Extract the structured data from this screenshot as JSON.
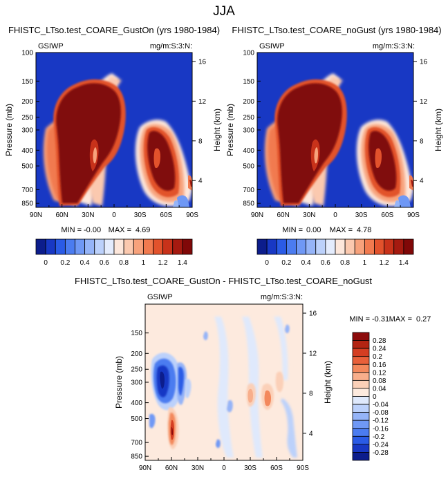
{
  "figure": {
    "title": "JJA"
  },
  "colors": {
    "upper_bar": [
      "#0c1d8c",
      "#1838c4",
      "#2a5be6",
      "#4b7cf0",
      "#6f98f5",
      "#95b4f8",
      "#bcd1fb",
      "#e4ecfd",
      "#fde7db",
      "#fbc9af",
      "#f7a27c",
      "#f17a4f",
      "#e2522c",
      "#c8321a",
      "#a51a10",
      "#800808"
    ],
    "diff_bar": [
      "#0c1d8c",
      "#1838c4",
      "#2a5be6",
      "#4b7cf0",
      "#6f98f5",
      "#95b4f8",
      "#bcd1fb",
      "#dfe9fc",
      "#fdeade",
      "#fbd0b8",
      "#f8ae8b",
      "#f3885c",
      "#e8603a",
      "#d43e22",
      "#b32412",
      "#8c0b0b"
    ]
  },
  "chart_data": [
    {
      "type": "heatmap",
      "title": "FHISTC_LTso.test_COARE_GustOn (yrs 1980-1984)",
      "left_label": "GSIWP",
      "right_label": "mg/m:S:3:N:",
      "xlabel": "",
      "ylabel": "Pressure (mb)",
      "ylabel_right": "Height (km)",
      "x_ticks": [
        "90N",
        "60N",
        "30N",
        "0",
        "30S",
        "60S",
        "90S"
      ],
      "y_ticks": [
        "100",
        "150",
        "200",
        "250",
        "300",
        "400",
        "500",
        "700",
        "850"
      ],
      "y2_ticks": [
        "16",
        "12",
        "8",
        "4"
      ],
      "stats": {
        "min_label": "MIN =",
        "min": "-0.00",
        "max_label": "MAX =",
        "max": "4.69"
      }
    },
    {
      "type": "heatmap",
      "title": "FHISTC_LTso.test_COARE_noGust (yrs 1980-1984)",
      "left_label": "GSIWP",
      "right_label": "mg/m:S:3:N:",
      "xlabel": "",
      "ylabel": "Pressure (mb)",
      "ylabel_right": "Height (km)",
      "x_ticks": [
        "90N",
        "60N",
        "30N",
        "0",
        "30S",
        "60S",
        "90S"
      ],
      "y_ticks": [
        "100",
        "150",
        "200",
        "250",
        "300",
        "400",
        "500",
        "700",
        "850"
      ],
      "y2_ticks": [
        "16",
        "12",
        "8",
        "4"
      ],
      "stats": {
        "min_label": "MIN =",
        "min": "0.00",
        "max_label": "MAX =",
        "max": "4.78"
      }
    },
    {
      "type": "heatmap",
      "title": "FHISTC_LTso.test_COARE_GustOn - FHISTC_LTso.test_COARE_noGust",
      "left_label": "GSIWP",
      "right_label": "mg/m:S:3:N:",
      "xlabel": "",
      "ylabel": "Pressure (mb)",
      "ylabel_right": "Height (km)",
      "x_ticks": [
        "90N",
        "60N",
        "30N",
        "0",
        "30S",
        "60S",
        "90S"
      ],
      "y_ticks": [
        "150",
        "200",
        "250",
        "300",
        "400",
        "500",
        "700",
        "850"
      ],
      "y2_ticks": [
        "16",
        "12",
        "8",
        "4"
      ],
      "stats": {
        "min_label": "MIN =",
        "min": "-0.31",
        "max_label": "MAX =",
        "max": "0.27"
      }
    }
  ],
  "colorbars": {
    "upper": {
      "labels": [
        "0",
        "0.2",
        "0.4",
        "0.6",
        "0.8",
        "1",
        "1.2",
        "1.4"
      ]
    },
    "diff": {
      "labels": [
        "0.28",
        "0.24",
        "0.2",
        "0.16",
        "0.12",
        "0.08",
        "0.04",
        "0",
        "-0.04",
        "-0.08",
        "-0.12",
        "-0.16",
        "-0.2",
        "-0.24",
        "-0.28"
      ]
    }
  }
}
